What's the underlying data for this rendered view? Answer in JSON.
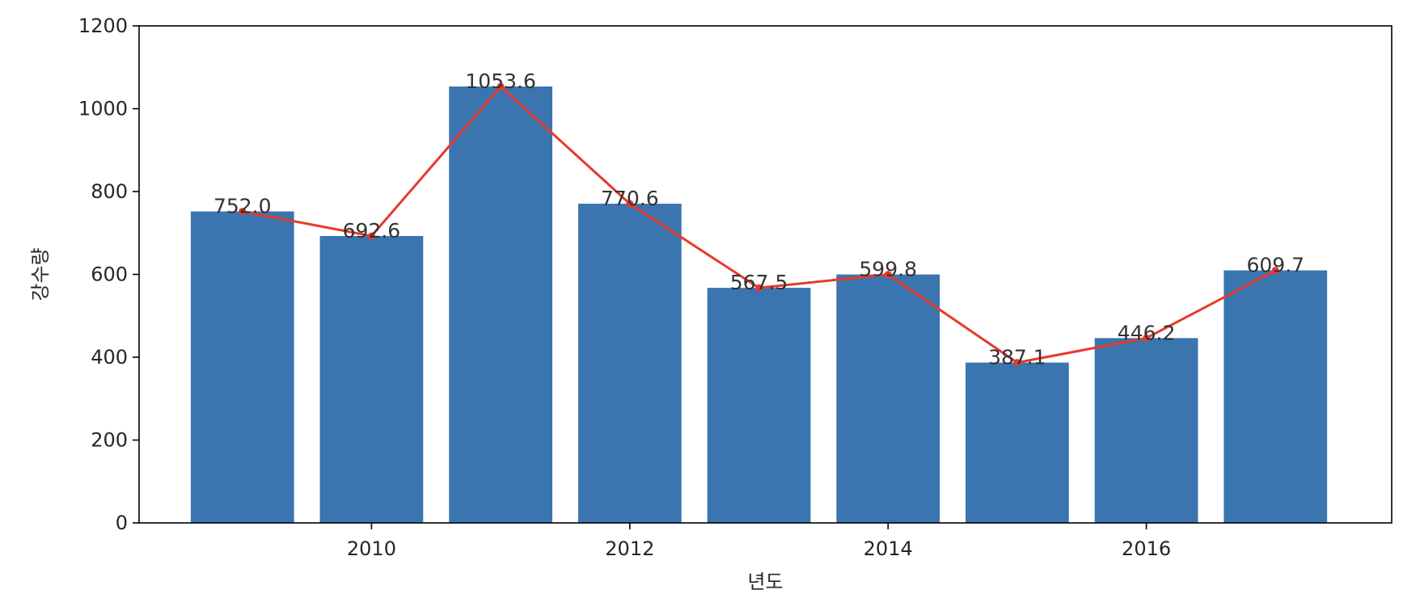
{
  "chart_data": {
    "type": "bar",
    "x": [
      2009,
      2010,
      2011,
      2012,
      2013,
      2014,
      2015,
      2016,
      2017
    ],
    "values": [
      752.0,
      692.6,
      1053.6,
      770.6,
      567.5,
      599.8,
      387.1,
      446.2,
      609.7
    ],
    "data_labels": [
      "752.0",
      "692.6",
      "1053.6",
      "770.6",
      "567.5",
      "599.8",
      "387.1",
      "446.2",
      "609.7"
    ],
    "line_overlay": true,
    "xlabel": "년도",
    "ylabel": "강수량",
    "xticks": [
      2010,
      2012,
      2014,
      2016
    ],
    "yticks": [
      0,
      200,
      400,
      600,
      800,
      1000,
      1200
    ],
    "xlim": [
      2008.2,
      2017.9
    ],
    "ylim": [
      0,
      1200
    ],
    "grid": false,
    "bar_color": "#3a75b0",
    "line_color": "#e8392b"
  }
}
